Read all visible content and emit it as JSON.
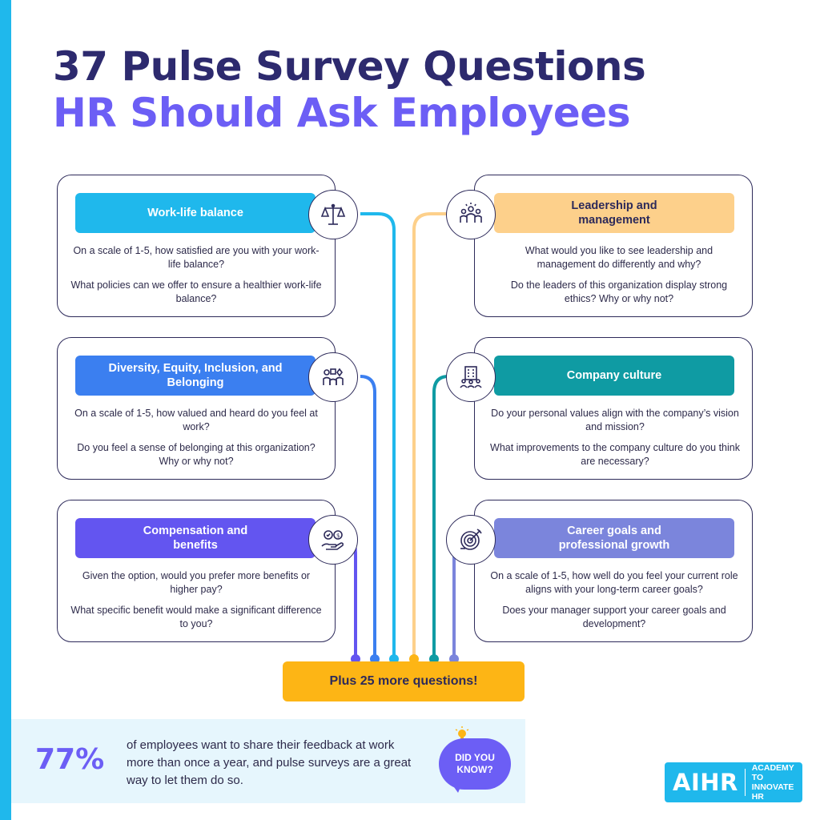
{
  "title": {
    "line1": "37 Pulse Survey Questions",
    "line2": "HR Should Ask Employees"
  },
  "categories": [
    {
      "label": "Work-life balance",
      "color": "#1fb8ec",
      "icon": "balance-scale-icon",
      "questions": [
        "On a scale of 1-5, how satisfied are you with your work-life balance?",
        "What policies can we offer to ensure a healthier work-life balance?"
      ]
    },
    {
      "label": "Leadership and management",
      "color": "#fdd08b",
      "icon": "team-leader-icon",
      "questions": [
        "What would you like to see leadership and management do differently and why?",
        "Do the leaders of this organization display strong ethics? Why or why not?"
      ]
    },
    {
      "label": "Diversity, Equity, Inclusion, and Belonging",
      "color": "#3b7ff0",
      "icon": "diverse-people-icon",
      "questions": [
        "On a scale of 1-5, how valued and heard do you feel at work?",
        "Do you feel a sense of belonging at this organization? Why or why not?"
      ]
    },
    {
      "label": "Company culture",
      "color": "#0f9ba3",
      "icon": "company-building-icon",
      "questions": [
        "Do your personal values align with the company’s vision and mission?",
        "What improvements to the company culture do you think are necessary?"
      ]
    },
    {
      "label": "Compensation and benefits",
      "color": "#6355f0",
      "icon": "hand-benefits-icon",
      "questions": [
        "Given the option, would you prefer more benefits or higher pay?",
        "What specific benefit would make a significant difference to you?"
      ]
    },
    {
      "label": "Career goals and professional growth",
      "color": "#7b85dc",
      "icon": "target-goal-icon",
      "questions": [
        "On a scale of 1-5, how well do you feel your current role aligns with your long-term career goals?",
        "Does your manager support your career goals and development?"
      ]
    }
  ],
  "more": "Plus 25 more questions!",
  "stat": {
    "value": "77%",
    "text": "of employees want to share their feedback at work more than once a year, and pulse surveys are a great way to let them do so.",
    "badge": "DID YOU KNOW?"
  },
  "logo": {
    "mark": "AIHR",
    "tagline": "ACADEMY TO INNOVATE HR"
  },
  "accent": "#6c5ef5",
  "brand_color": "#1fb8ec"
}
